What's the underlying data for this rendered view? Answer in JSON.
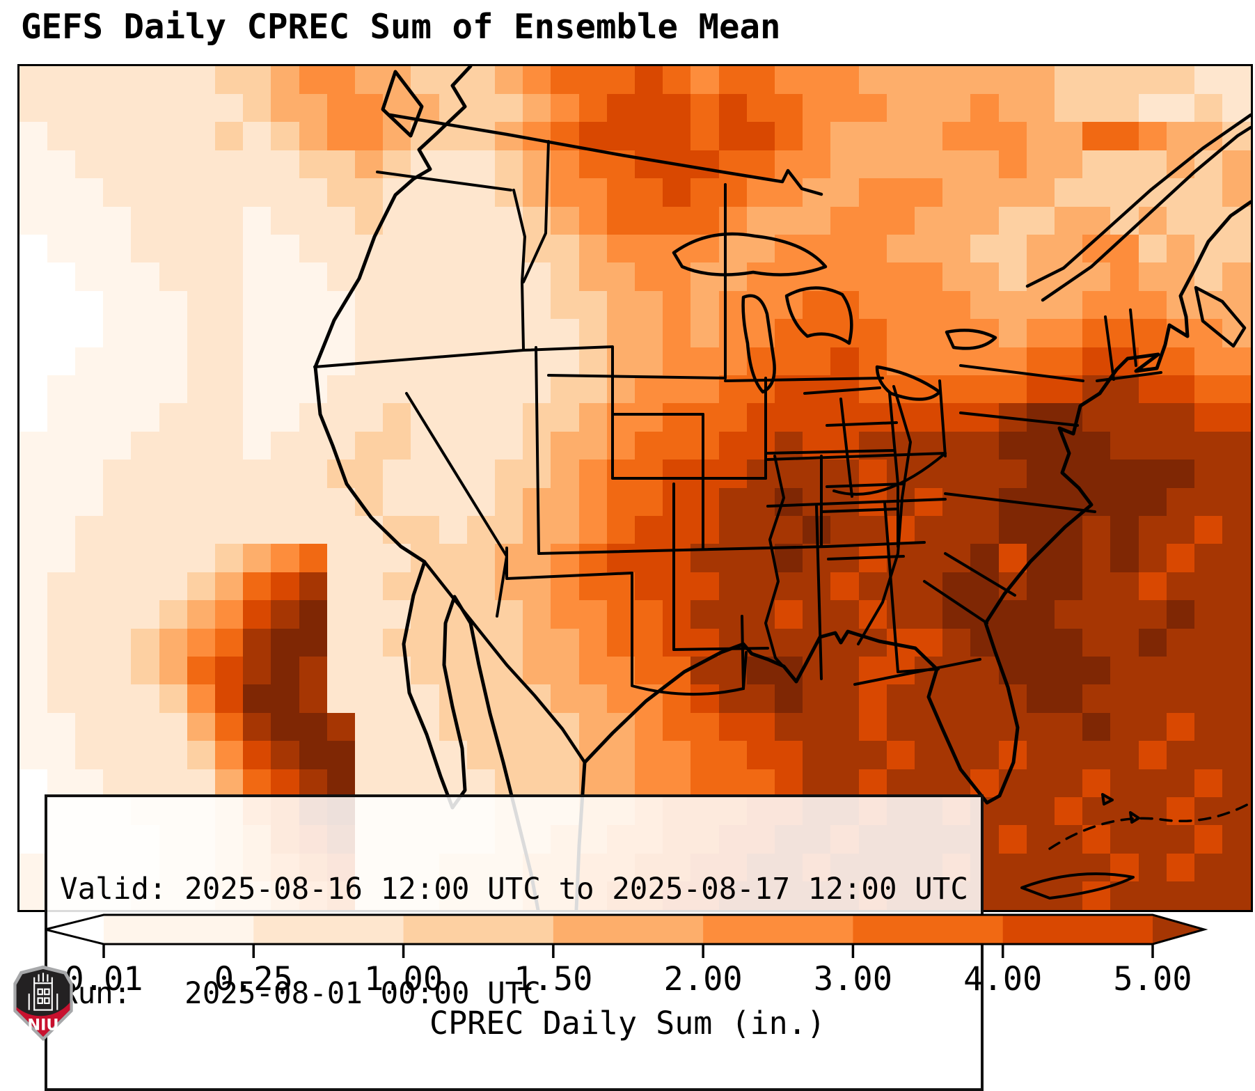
{
  "title": "GEFS Daily CPREC Sum of Ensemble Mean",
  "info_box": {
    "line1": "Valid: 2025-08-16 12:00 UTC to 2025-08-17 12:00 UTC",
    "line2": "Run:   2025-08-01 00:00 UTC"
  },
  "colorbar": {
    "label": "CPREC Daily Sum (in.)",
    "tick_labels": [
      "0.01",
      "0.25",
      "1.00",
      "1.50",
      "2.00",
      "3.00",
      "4.00",
      "5.00"
    ],
    "segment_colors": [
      "#fff5eb",
      "#fee6ce",
      "#fdd0a2",
      "#fdae6b",
      "#fd8d3c",
      "#f16913",
      "#d94801"
    ],
    "under_color": "#ffffff",
    "over_color": "#a63603",
    "outline_color": "#000000"
  },
  "logo": {
    "text": "NIU",
    "shield_dark": "#232122",
    "shield_red": "#c8102e",
    "shield_border": "#a7a8aa"
  },
  "chart_data": {
    "type": "heatmap",
    "title": "GEFS Daily CPREC Sum of Ensemble Mean",
    "variable": "CPREC Daily Sum",
    "units": "in.",
    "valid": "2025-08-16 12:00 UTC to 2025-08-17 12:00 UTC",
    "run": "2025-08-01 00:00 UTC",
    "colorbar_boundaries_in": [
      0.01,
      0.25,
      1.0,
      1.5,
      2.0,
      3.0,
      4.0,
      5.0
    ],
    "colorbar_extend": "both",
    "palette": [
      "#ffffff",
      "#fff5eb",
      "#fee6ce",
      "#fdd0a2",
      "#fdae6b",
      "#fd8d3c",
      "#f16913",
      "#d94801",
      "#a63603",
      "#7f2704"
    ],
    "palette_levels_in": [
      "<0.01",
      "0.01-0.25",
      "0.25-1.00",
      "1.00-1.50",
      "1.50-2.00",
      "2.00-3.00",
      "3.00-4.00",
      "4.00-5.00",
      ">5.00",
      ">5.00 (darkest)"
    ],
    "grid_cols": 44,
    "grid_rows": 30,
    "grid_note": "Each char is a palette index; coarse CONUS precipitation field, row 0 = north",
    "grid": [
      "22222223345544333456667656655544444443333322",
      "22222222344554433345677767665554445443332232",
      "12222223234554333456777767765444455544665443",
      "11222222223343222345667776655444444544333434",
      "11122222222332222345566766554455544443333334",
      "11112222122232222234566665444555444334434333",
      "01112222112222222233455554455554443344553433",
      "00111222111222222223445544555555544344454434",
      "00011122111122222223344545556655554444555444",
      "00011122111122222222344545566665555455666554",
      "00111122111122222222344555666765555566776655",
      "01111122111222222223345556677766666677887766",
      "01111222112223222233455666777777777899888877",
      "11112222122233222234456667787788888999988888",
      "11122222222332222334566777888878888899999988",
      "11122222222232222344566778898878788999999888",
      "11222222222223323344567778889887888999898878",
      "11222223456222333445677788898878889799898788",
      "12222234678223333445667778888788899899887888",
      "12222345789222333345566788878878899998888988",
      "12223456899223333344566778888887789999889888",
      "12223467898222333344556688998877888999988888",
      "12222357998222233334455678898878888899888888",
      "11222246899822233333445667788878888888988788",
      "11222235789922223333445566778887888788887888",
      "01122224678922222333445566678878887888788878",
      "01112223568922222333445666778878878887888788",
      "01111223467822222334455667788788888788788878",
      "11111223456722233344556677887888878888878788",
      "11112223345622233344566778888878888888788888"
    ]
  }
}
